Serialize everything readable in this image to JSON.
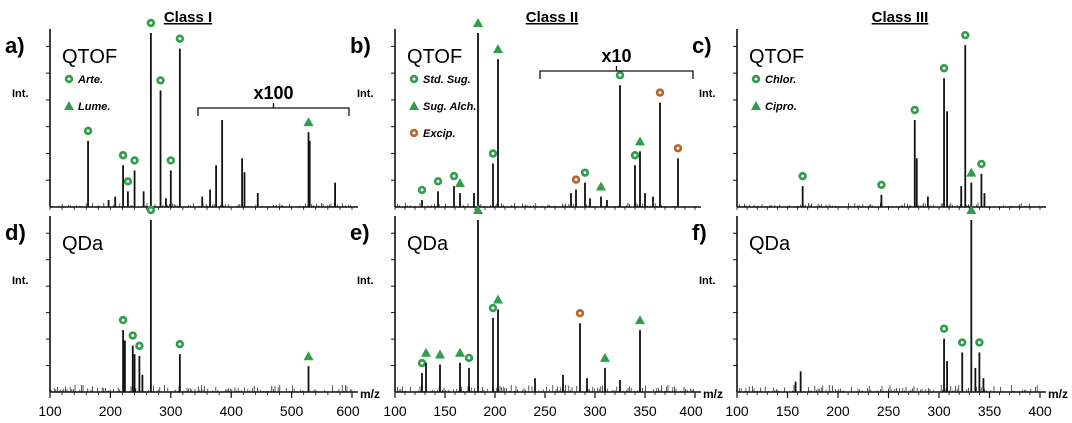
{
  "colors": {
    "green": "#2e9e4a",
    "orange": "#b8642b",
    "line": "#111111"
  },
  "class_headers": [
    "Class I",
    "Class II",
    "Class III"
  ],
  "axis": {
    "mz_label": "m/z",
    "int_label": "Int."
  },
  "chart_data": [
    {
      "id": "a",
      "panel_label": "a)",
      "instrument": "QTOF",
      "type": "bar",
      "xlim": [
        100,
        600
      ],
      "xticks": [
        100,
        200,
        300,
        400,
        500,
        600
      ],
      "ylim": [
        0,
        100
      ],
      "legend": [
        {
          "marker": "circle",
          "color": "green",
          "text": "Arte."
        },
        {
          "marker": "triangle",
          "color": "green",
          "text": "Lume."
        }
      ],
      "magnification": {
        "text": "x100",
        "from": 345,
        "to": 595
      },
      "peaks": [
        {
          "x": 163,
          "y": 38,
          "m": "circle",
          "c": "green"
        },
        {
          "x": 221,
          "y": 24,
          "m": "circle",
          "c": "green"
        },
        {
          "x": 229,
          "y": 9,
          "m": "circle",
          "c": "green"
        },
        {
          "x": 240,
          "y": 21,
          "m": "circle",
          "c": "green"
        },
        {
          "x": 267,
          "y": 100,
          "m": "circle",
          "c": "green"
        },
        {
          "x": 283,
          "y": 67,
          "m": "circle",
          "c": "green"
        },
        {
          "x": 300,
          "y": 21,
          "m": "circle",
          "c": "green"
        },
        {
          "x": 315,
          "y": 91,
          "m": "circle",
          "c": "green"
        },
        {
          "x": 528,
          "y": 43,
          "m": "triangle",
          "c": "green"
        },
        {
          "x": 530,
          "y": 38
        },
        {
          "x": 375,
          "y": 24
        },
        {
          "x": 385,
          "y": 50
        },
        {
          "x": 365,
          "y": 10
        },
        {
          "x": 418,
          "y": 28
        },
        {
          "x": 422,
          "y": 20
        },
        {
          "x": 444,
          "y": 8
        },
        {
          "x": 572,
          "y": 14
        },
        {
          "x": 208,
          "y": 6
        },
        {
          "x": 197,
          "y": 4
        },
        {
          "x": 255,
          "y": 9
        },
        {
          "x": 292,
          "y": 5
        },
        {
          "x": 352,
          "y": 6
        }
      ]
    },
    {
      "id": "b",
      "panel_label": "b)",
      "instrument": "QTOF",
      "type": "bar",
      "xlim": [
        100,
        400
      ],
      "xticks": [
        100,
        150,
        200,
        250,
        300,
        350,
        400
      ],
      "ylim": [
        0,
        100
      ],
      "legend": [
        {
          "marker": "circle",
          "color": "green",
          "text": "Std. Sug."
        },
        {
          "marker": "triangle",
          "color": "green",
          "text": "Sug. Alch."
        },
        {
          "marker": "circle",
          "color": "orange",
          "text": "Excip."
        }
      ],
      "magnification": {
        "text": "x10",
        "from": 245,
        "to": 398
      },
      "peaks": [
        {
          "x": 127,
          "y": 4,
          "m": "circle",
          "c": "green"
        },
        {
          "x": 143,
          "y": 9,
          "m": "circle",
          "c": "green"
        },
        {
          "x": 159,
          "y": 12,
          "m": "circle",
          "c": "green"
        },
        {
          "x": 165,
          "y": 8,
          "m": "triangle",
          "c": "green"
        },
        {
          "x": 183,
          "y": 100,
          "m": "triangle",
          "c": "green"
        },
        {
          "x": 198,
          "y": 25,
          "m": "circle",
          "c": "green"
        },
        {
          "x": 203,
          "y": 85,
          "m": "triangle",
          "c": "green"
        },
        {
          "x": 281,
          "y": 10,
          "m": "circle",
          "c": "orange"
        },
        {
          "x": 290,
          "y": 14,
          "m": "circle",
          "c": "green"
        },
        {
          "x": 306,
          "y": 6,
          "m": "triangle",
          "c": "green"
        },
        {
          "x": 325,
          "y": 70,
          "m": "circle",
          "c": "green"
        },
        {
          "x": 340,
          "y": 24,
          "m": "circle",
          "c": "green"
        },
        {
          "x": 345,
          "y": 32,
          "m": "triangle",
          "c": "green"
        },
        {
          "x": 365,
          "y": 60,
          "m": "circle",
          "c": "orange"
        },
        {
          "x": 383,
          "y": 28,
          "m": "circle",
          "c": "orange"
        },
        {
          "x": 179,
          "y": 8
        },
        {
          "x": 276,
          "y": 8
        },
        {
          "x": 295,
          "y": 5
        },
        {
          "x": 312,
          "y": 4
        },
        {
          "x": 350,
          "y": 8
        },
        {
          "x": 358,
          "y": 6
        }
      ]
    },
    {
      "id": "c",
      "panel_label": "c)",
      "instrument": "QTOF",
      "type": "bar",
      "xlim": [
        100,
        400
      ],
      "xticks": [
        100,
        150,
        200,
        250,
        300,
        350,
        400
      ],
      "ylim": [
        0,
        100
      ],
      "legend": [
        {
          "marker": "circle",
          "color": "green",
          "text": "Chlor."
        },
        {
          "marker": "triangle",
          "color": "green",
          "text": "Cipro."
        }
      ],
      "peaks": [
        {
          "x": 165,
          "y": 12,
          "m": "circle",
          "c": "green"
        },
        {
          "x": 243,
          "y": 7,
          "m": "circle",
          "c": "green"
        },
        {
          "x": 276,
          "y": 50,
          "m": "circle",
          "c": "green"
        },
        {
          "x": 305,
          "y": 74,
          "m": "circle",
          "c": "green"
        },
        {
          "x": 326,
          "y": 93,
          "m": "circle",
          "c": "green"
        },
        {
          "x": 332,
          "y": 14,
          "m": "triangle",
          "c": "green"
        },
        {
          "x": 342,
          "y": 19,
          "m": "circle",
          "c": "green"
        },
        {
          "x": 308,
          "y": 55
        },
        {
          "x": 278,
          "y": 28
        },
        {
          "x": 322,
          "y": 12
        },
        {
          "x": 345,
          "y": 8
        },
        {
          "x": 289,
          "y": 6
        }
      ]
    },
    {
      "id": "d",
      "panel_label": "d)",
      "instrument": "QDa",
      "type": "bar",
      "xlim": [
        100,
        600
      ],
      "xticks": [
        100,
        200,
        300,
        400,
        500,
        600
      ],
      "ylim": [
        0,
        100
      ],
      "peaks": [
        {
          "x": 221,
          "y": 36,
          "m": "circle",
          "c": "green"
        },
        {
          "x": 237,
          "y": 27,
          "m": "circle",
          "c": "green"
        },
        {
          "x": 248,
          "y": 21,
          "m": "circle",
          "c": "green"
        },
        {
          "x": 267,
          "y": 100,
          "m": "circle",
          "c": "green"
        },
        {
          "x": 315,
          "y": 22,
          "m": "circle",
          "c": "green"
        },
        {
          "x": 528,
          "y": 15,
          "m": "triangle",
          "c": "green"
        },
        {
          "x": 224,
          "y": 30
        },
        {
          "x": 240,
          "y": 22
        },
        {
          "x": 253,
          "y": 10
        }
      ]
    },
    {
      "id": "e",
      "panel_label": "e)",
      "instrument": "QDa",
      "type": "bar",
      "xlim": [
        100,
        400
      ],
      "xticks": [
        100,
        150,
        200,
        250,
        300,
        350,
        400
      ],
      "ylim": [
        0,
        100
      ],
      "peaks": [
        {
          "x": 127,
          "y": 11,
          "m": "circle",
          "c": "green"
        },
        {
          "x": 131,
          "y": 17,
          "m": "triangle",
          "c": "green"
        },
        {
          "x": 145,
          "y": 16,
          "m": "triangle",
          "c": "green"
        },
        {
          "x": 165,
          "y": 17,
          "m": "triangle",
          "c": "green"
        },
        {
          "x": 174,
          "y": 14,
          "m": "circle",
          "c": "green"
        },
        {
          "x": 183,
          "y": 100,
          "m": "triangle",
          "c": "green"
        },
        {
          "x": 198,
          "y": 43,
          "m": "circle",
          "c": "green"
        },
        {
          "x": 203,
          "y": 48,
          "m": "triangle",
          "c": "green"
        },
        {
          "x": 285,
          "y": 40,
          "m": "circle",
          "c": "orange"
        },
        {
          "x": 310,
          "y": 14,
          "m": "triangle",
          "c": "green"
        },
        {
          "x": 345,
          "y": 36,
          "m": "triangle",
          "c": "green"
        },
        {
          "x": 268,
          "y": 10
        },
        {
          "x": 292,
          "y": 8
        },
        {
          "x": 325,
          "y": 7
        },
        {
          "x": 240,
          "y": 8
        }
      ]
    },
    {
      "id": "f",
      "panel_label": "f)",
      "instrument": "QDa",
      "type": "bar",
      "xlim": [
        100,
        400
      ],
      "xticks": [
        100,
        150,
        200,
        250,
        300,
        350,
        400
      ],
      "ylim": [
        0,
        100
      ],
      "peaks": [
        {
          "x": 163,
          "y": 12
        },
        {
          "x": 305,
          "y": 31,
          "m": "circle",
          "c": "green"
        },
        {
          "x": 323,
          "y": 23,
          "m": "circle",
          "c": "green"
        },
        {
          "x": 332,
          "y": 100,
          "m": "triangle",
          "c": "green"
        },
        {
          "x": 340,
          "y": 23,
          "m": "circle",
          "c": "green"
        },
        {
          "x": 308,
          "y": 18
        },
        {
          "x": 336,
          "y": 14
        },
        {
          "x": 344,
          "y": 8
        },
        {
          "x": 158,
          "y": 6
        }
      ]
    }
  ]
}
